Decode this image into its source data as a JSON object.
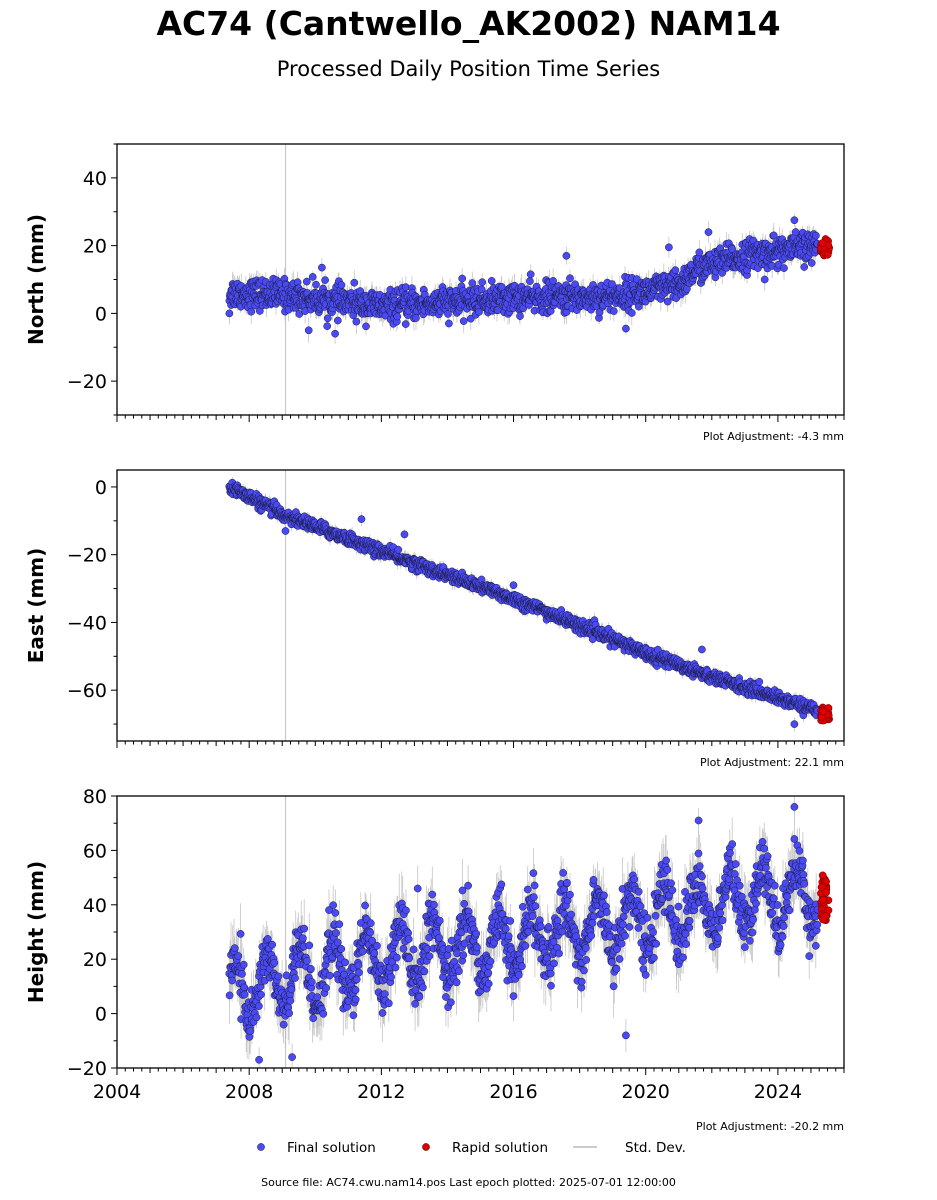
{
  "title": "AC74 (Cantwello_AK2002) NAM14",
  "subtitle": "Processed Daily Position Time Series",
  "source": "Source file: AC74.cwu.nam14.pos  Last epoch plotted: 2025-07-01 12:00:00",
  "colors": {
    "final": "#4a4af5",
    "rapid": "#e00000",
    "stddev": "#bbbbbb",
    "marker_edge": "#1a1a3a",
    "vline": "#c8c8c8"
  },
  "chart_data": [
    {
      "type": "scatter",
      "ylabel": "North (mm)",
      "ylim": [
        -30,
        50
      ],
      "yticks": [
        -20,
        0,
        20,
        40
      ],
      "xlim": [
        2004,
        2026
      ],
      "xticks": [
        2004,
        2008,
        2012,
        2016,
        2020,
        2024
      ],
      "show_xtick_labels": false,
      "vline_x": 2009.1,
      "adjustment": "Plot Adjustment: -4.3 mm",
      "final_trend": [
        [
          2007.4,
          6
        ],
        [
          2009,
          5.5
        ],
        [
          2012,
          2
        ],
        [
          2016,
          4.5
        ],
        [
          2019,
          5
        ],
        [
          2021,
          8
        ],
        [
          2021.5,
          13
        ],
        [
          2023,
          17
        ],
        [
          2025.2,
          20
        ]
      ],
      "final_range": [
        2007.4,
        2025.2
      ],
      "scatter_sd": 2.2,
      "stddev_len": 2.5,
      "seasonal_amp": 0,
      "rapid": {
        "x": [
          2025.3,
          2025.55
        ],
        "y_range": [
          17,
          22
        ]
      },
      "outliers": [
        [
          2007.4,
          0
        ],
        [
          2009.8,
          -5
        ],
        [
          2010.2,
          13.5
        ],
        [
          2010.6,
          -6
        ],
        [
          2017.6,
          17
        ],
        [
          2019.4,
          -4.5
        ],
        [
          2020.7,
          19.5
        ],
        [
          2021.9,
          24
        ],
        [
          2023.6,
          10
        ],
        [
          2024.5,
          27.5
        ]
      ]
    },
    {
      "type": "scatter",
      "ylabel": "East (mm)",
      "ylim": [
        -75,
        5
      ],
      "yticks": [
        -60,
        -40,
        -20,
        0
      ],
      "xlim": [
        2004,
        2026
      ],
      "xticks": [
        2004,
        2008,
        2012,
        2016,
        2020,
        2024
      ],
      "show_xtick_labels": false,
      "vline_x": 2009.1,
      "adjustment": "Plot Adjustment: 22.1 mm",
      "final_trend": [
        [
          2007.4,
          0
        ],
        [
          2009,
          -8
        ],
        [
          2012,
          -19
        ],
        [
          2016,
          -33
        ],
        [
          2020,
          -49
        ],
        [
          2022,
          -56
        ],
        [
          2025.2,
          -66
        ]
      ],
      "final_range": [
        2007.4,
        2025.2
      ],
      "scatter_sd": 0.9,
      "stddev_len": 1.5,
      "seasonal_amp": 0,
      "rapid": {
        "x": [
          2025.3,
          2025.55
        ],
        "y_range": [
          -69,
          -65
        ]
      },
      "outliers": [
        [
          2009.1,
          -13
        ],
        [
          2011.4,
          -9.5
        ],
        [
          2012.7,
          -14
        ],
        [
          2016,
          -29
        ],
        [
          2021.7,
          -48
        ],
        [
          2024.5,
          -70
        ]
      ]
    },
    {
      "type": "scatter",
      "ylabel": "Height (mm)",
      "ylim": [
        -20,
        80
      ],
      "yticks": [
        -20,
        0,
        20,
        40,
        60,
        80
      ],
      "xlim": [
        2004,
        2026
      ],
      "xticks": [
        2004,
        2008,
        2012,
        2016,
        2020,
        2024
      ],
      "show_xtick_labels": true,
      "vline_x": 2009.1,
      "adjustment": "Plot Adjustment: -20.2 mm",
      "final_trend": [
        [
          2007.4,
          8
        ],
        [
          2009,
          12
        ],
        [
          2012,
          20
        ],
        [
          2016,
          27
        ],
        [
          2020,
          35
        ],
        [
          2023,
          42
        ],
        [
          2025.2,
          45
        ]
      ],
      "final_range": [
        2007.4,
        2025.2
      ],
      "scatter_sd": 5,
      "stddev_len": 8,
      "seasonal_amp": 11,
      "rapid": {
        "x": [
          2025.3,
          2025.55
        ],
        "y_range": [
          34,
          51
        ]
      },
      "outliers": [
        [
          2019.4,
          -8
        ],
        [
          2021.6,
          71
        ],
        [
          2024.5,
          76
        ],
        [
          2008.3,
          -17
        ],
        [
          2009.3,
          -16
        ],
        [
          2013.1,
          46
        ]
      ]
    }
  ],
  "legend": [
    {
      "type": "marker",
      "color": "#4a4af5",
      "label": "Final solution"
    },
    {
      "type": "marker",
      "color": "#e00000",
      "label": "Rapid solution"
    },
    {
      "type": "line",
      "color": "#bbbbbb",
      "label": "Std. Dev."
    }
  ]
}
